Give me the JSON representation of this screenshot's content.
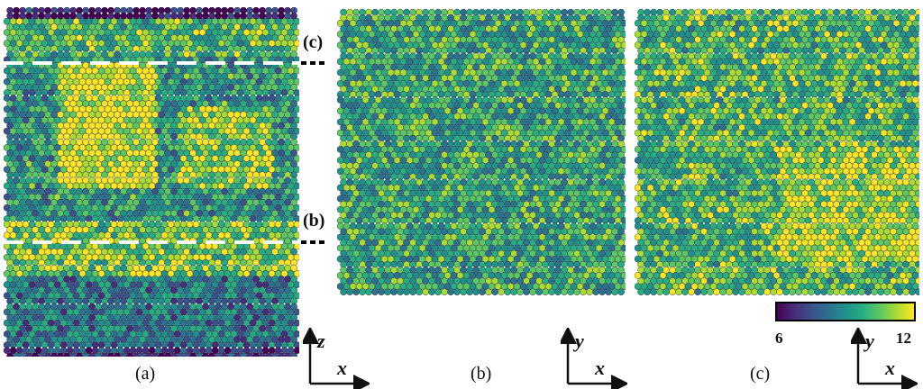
{
  "figure": {
    "panels": [
      {
        "id": "a",
        "caption": "(a)",
        "view": "x-z",
        "description_axes": {
          "vertical": "z",
          "horizontal": "x"
        }
      },
      {
        "id": "b",
        "caption": "(b)",
        "view": "x-y",
        "description_axes": {
          "vertical": "y",
          "horizontal": "x"
        }
      },
      {
        "id": "c",
        "caption": "(c)",
        "view": "x-y",
        "description_axes": {
          "vertical": "y",
          "horizontal": "x"
        }
      }
    ],
    "slice_markers": {
      "upper": "(c)",
      "lower": "(b)"
    },
    "colorbar": {
      "min_label": "6",
      "max_label": "12",
      "min": 6,
      "max": 12,
      "colormap": [
        "#440154",
        "#472c7a",
        "#3b518b",
        "#2c718e",
        "#21908d",
        "#27ad81",
        "#5cc863",
        "#aadc32",
        "#fde725"
      ]
    },
    "colors": {
      "dark": "#440154",
      "teal": "#21908d",
      "green": "#5cc863",
      "yellow": "#fde725"
    }
  }
}
